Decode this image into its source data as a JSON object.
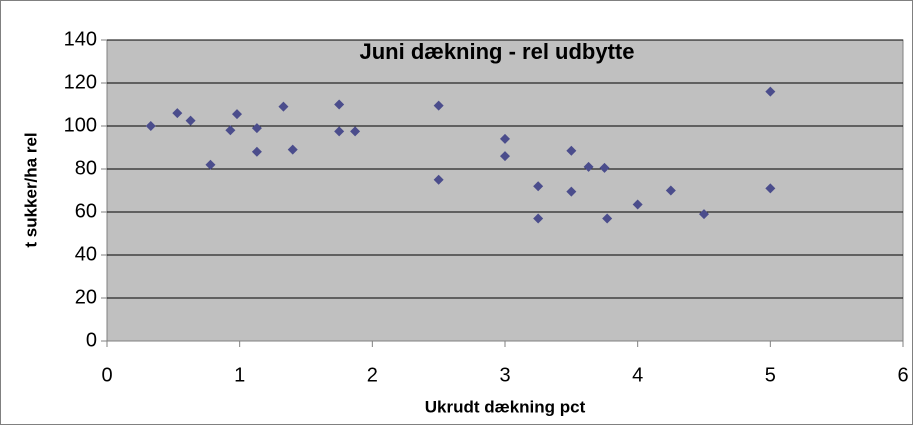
{
  "chart_data": {
    "type": "scatter",
    "title": "Juni dækning - rel udbytte",
    "x_label": "Ukrudt dækning pct",
    "y_label": "t sukker/ha rel",
    "series": [
      {
        "color": "#4b4d8c",
        "x": [
          0.33,
          0.53,
          0.63,
          0.78,
          0.93,
          0.98,
          1.13,
          1.13,
          1.33,
          1.4,
          1.75,
          1.75,
          1.87,
          2.5,
          2.5,
          3,
          3,
          3.25,
          3.25,
          3.5,
          3.5,
          3.63,
          3.75,
          3.77,
          4,
          4.25,
          4.5,
          5,
          5
        ],
        "values": [
          100,
          106,
          102.5,
          82,
          98,
          105.5,
          99,
          88,
          109,
          89,
          110,
          97.5,
          97.5,
          109.5,
          75,
          94,
          86,
          72,
          57,
          88.5,
          69.5,
          81,
          80.5,
          57,
          63.5,
          70,
          59,
          116,
          71
        ]
      }
    ],
    "xlim": [
      0,
      6
    ],
    "xticks": [
      0,
      1,
      2,
      3,
      4,
      5,
      6
    ],
    "ylim": [
      0,
      140
    ],
    "yticks": [
      0,
      20,
      40,
      60,
      80,
      100,
      120,
      140
    ],
    "grid": true,
    "plot_background": "#c0c0c0"
  }
}
